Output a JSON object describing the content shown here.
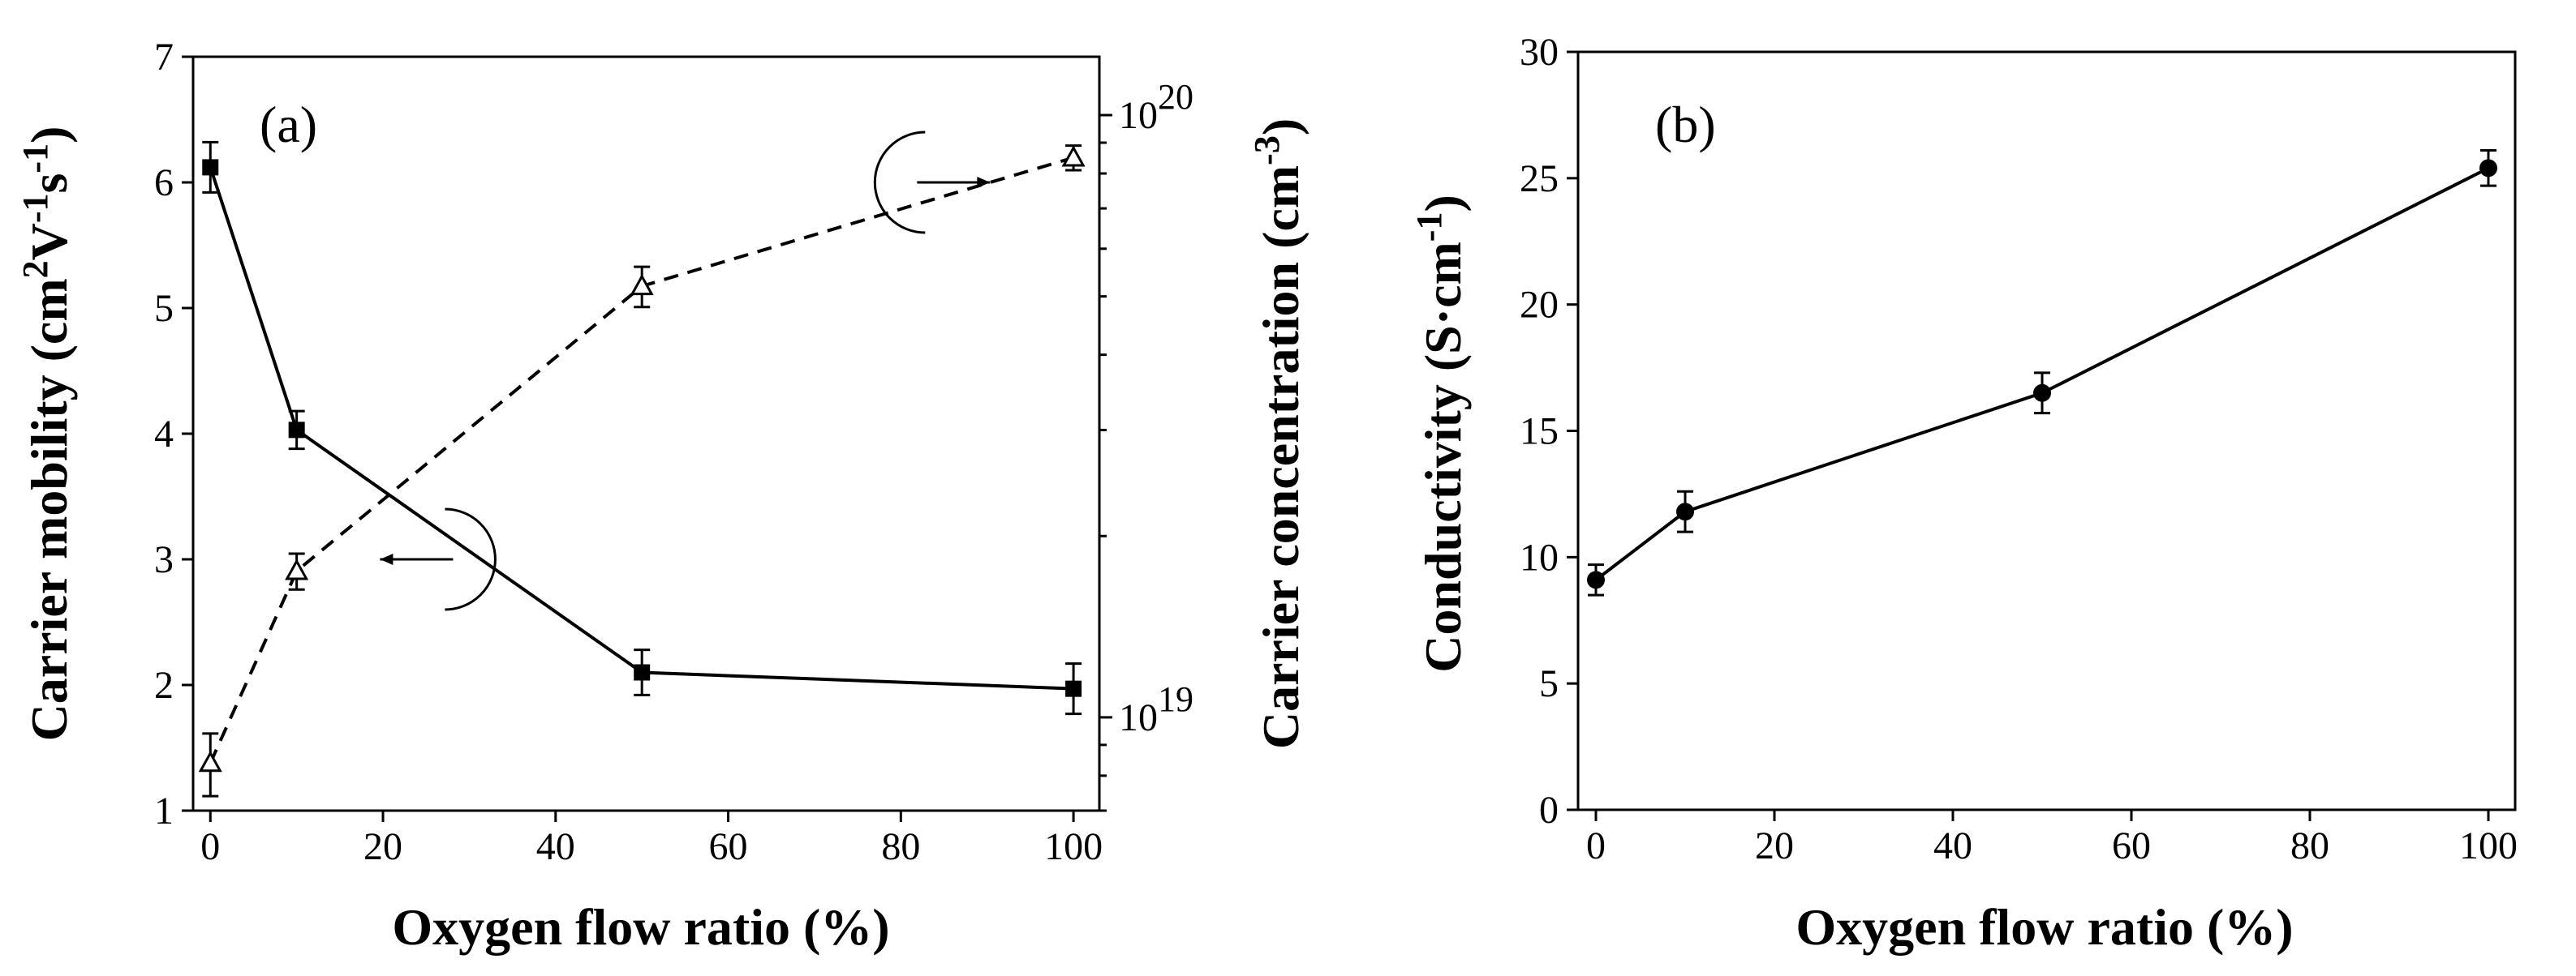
{
  "chart_data": [
    {
      "panel": "(a)",
      "type": "line",
      "xlabel": "Oxygen flow ratio (%)",
      "xlim": [
        -2,
        103
      ],
      "xticks": [
        0,
        20,
        40,
        60,
        80,
        100
      ],
      "x": [
        0,
        10,
        50,
        100
      ],
      "y_left": {
        "label": "Carrier mobility (cm2V-1s-1)",
        "label_parts": {
          "pre": "Carrier mobility (cm",
          "sup1": "2",
          "mid1": "V",
          "sup2": "-1",
          "mid2": "s",
          "sup3": "-1",
          "post": ")"
        },
        "lim": [
          1,
          7
        ],
        "ticks": [
          1,
          2,
          3,
          4,
          5,
          6,
          7
        ]
      },
      "y_right": {
        "label": "Carrier concentration (cm-3)",
        "label_parts": {
          "pre": "Carrier concentration (cm",
          "sup": "-3",
          "post": ")"
        },
        "scale": "log",
        "lim": [
          7e+18,
          1.25e+20
        ],
        "ticks": [
          {
            "value": 1e+19,
            "base": "10",
            "exp": "19"
          },
          {
            "value": 1e+20,
            "base": "10",
            "exp": "20"
          }
        ]
      },
      "series": [
        {
          "axis": "left",
          "marker": "filled-square",
          "line": "solid",
          "values": [
            6.12,
            4.03,
            2.1,
            1.97
          ],
          "errors": [
            0.2,
            0.15,
            0.18,
            0.2
          ]
        },
        {
          "axis": "right",
          "marker": "open-triangle",
          "line": "dashed",
          "values": [
            8.4e+18,
            1.75e+19,
            5.2e+19,
            8.5e+19
          ],
          "errors": [
            1e+18,
            1.2e+18,
            4e+18,
            4e+18
          ]
        }
      ],
      "annotations": [
        {
          "points_to": "left",
          "x": 30,
          "y": 3.0
        },
        {
          "points_to": "right",
          "x": 80,
          "y": 6.0
        }
      ]
    },
    {
      "panel": "(b)",
      "type": "line",
      "xlabel": "Oxygen flow ratio (%)",
      "xlim": [
        -2,
        103
      ],
      "xticks": [
        0,
        20,
        40,
        60,
        80,
        100
      ],
      "x": [
        0,
        10,
        50,
        100
      ],
      "y_left": {
        "label": "Conductivity (S·cm-1)",
        "label_parts": {
          "pre": "Conductivity (S·cm",
          "sup": "-1",
          "post": ")"
        },
        "lim": [
          0,
          30
        ],
        "ticks": [
          0,
          5,
          10,
          15,
          20,
          25,
          30
        ]
      },
      "series": [
        {
          "axis": "left",
          "marker": "filled-circle",
          "line": "solid",
          "values": [
            9.1,
            11.8,
            16.5,
            25.4
          ],
          "errors": [
            0.6,
            0.8,
            0.8,
            0.7
          ]
        }
      ]
    }
  ]
}
